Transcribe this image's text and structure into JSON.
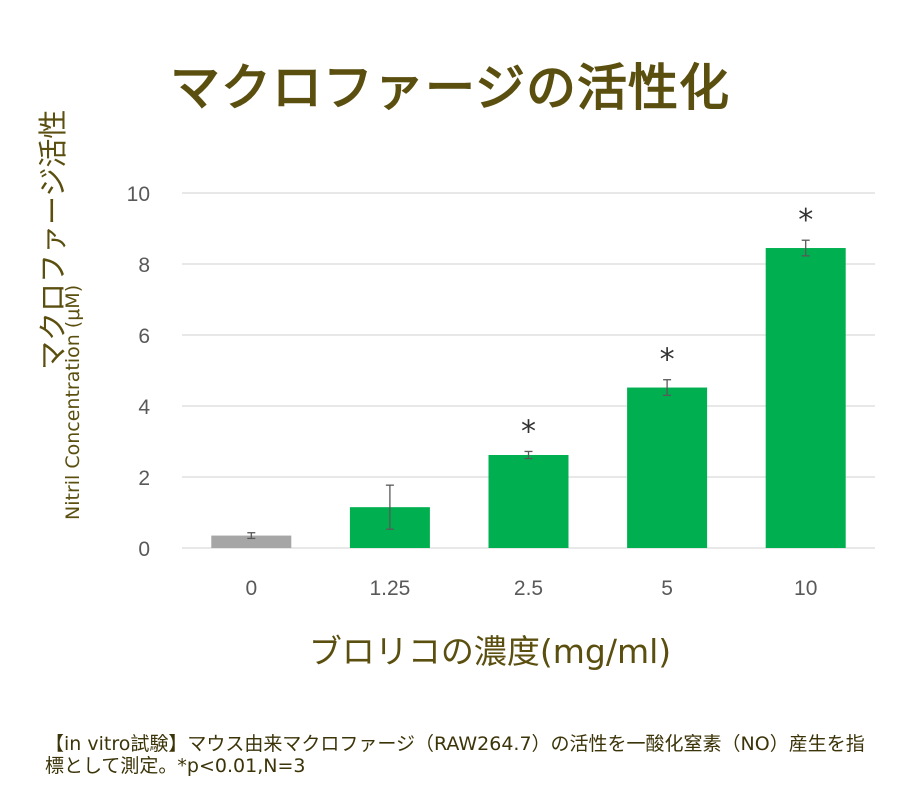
{
  "title": "マクロファージの活性化",
  "y_axis": {
    "label_jp": "マクロファージ活性",
    "label_en": "Nitril Concentration (μM)"
  },
  "x_axis": {
    "label": "ブロリコの濃度(mg/ml)"
  },
  "caption": "【in vitro試験】マウス由来マクロファージ（RAW264.7）の活性を一酸化窒素（NO）産生を指標として測定。*p<0.01,N=3",
  "colors": {
    "title": "#5b4f10",
    "control_bar": "#a6a6a6",
    "treatment_bar": "#00b050",
    "grid": "#d9d9d9"
  },
  "chart_data": {
    "type": "bar",
    "title": "マクロファージの活性化",
    "xlabel": "ブロリコの濃度(mg/ml)",
    "ylabel": "マクロファージ活性 Nitril Concentration (μM)",
    "categories": [
      "0",
      "1.25",
      "2.5",
      "5",
      "10"
    ],
    "values": [
      0.35,
      1.15,
      2.62,
      4.52,
      8.45
    ],
    "errors": [
      0.08,
      0.62,
      0.1,
      0.22,
      0.22
    ],
    "significant": [
      false,
      false,
      true,
      true,
      true
    ],
    "significance_marker": "*",
    "bar_colors": [
      "#a6a6a6",
      "#00b050",
      "#00b050",
      "#00b050",
      "#00b050"
    ],
    "ylim": [
      0,
      10
    ],
    "yticks": [
      "0",
      "2",
      "4",
      "6",
      "8",
      "10"
    ],
    "grid": true
  }
}
